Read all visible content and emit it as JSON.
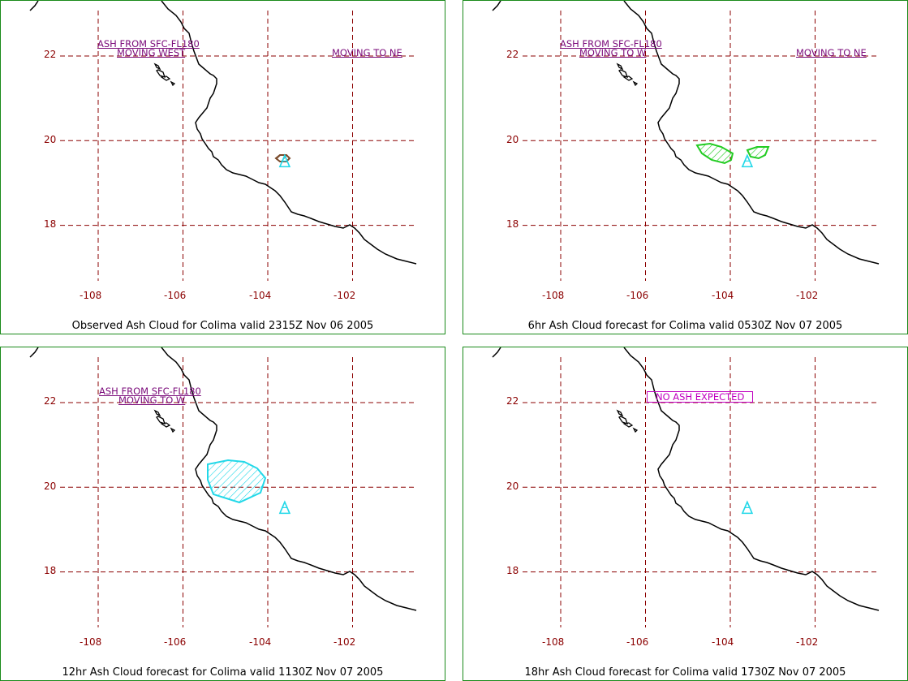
{
  "colors": {
    "grid": "#8b0000",
    "coast": "#000000",
    "observed_ash": "#7a4a2a",
    "forecast_ash_6hr": "#22cc22",
    "forecast_ash_12hr": "#22d8e8",
    "volcano": "#22d8e8",
    "annotation": "#7a0a7a",
    "no_ash_box": "#c000c0",
    "frame": "#1a8a1a"
  },
  "axes": {
    "lon_ticks": [
      "-108",
      "-106",
      "-104",
      "-102"
    ],
    "lat_ticks": [
      "22",
      "20",
      "18"
    ],
    "lon_values": [
      -108,
      -106,
      -104,
      -102
    ],
    "lat_values": [
      22,
      20,
      18
    ]
  },
  "volcano": {
    "name": "Colima",
    "lon": -103.6,
    "lat": 19.5,
    "icon": "volcano-triangle-icon"
  },
  "panels": [
    {
      "caption": "Observed Ash Cloud for Colima valid 2315Z Nov 06 2005",
      "annotations": [
        "ASH FROM SFC-FL180",
        "MOVING WEST",
        "MOVING TO NE"
      ],
      "ash_type": "observed"
    },
    {
      "caption": "6hr Ash Cloud forecast for Colima valid 0530Z Nov 07 2005",
      "annotations": [
        "ASH FROM SFC-FL180",
        "MOVING TO W",
        "MOVING TO NE"
      ],
      "ash_type": "forecast-6hr"
    },
    {
      "caption": "12hr Ash Cloud forecast for Colima valid 1130Z Nov 07 2005",
      "annotations": [
        "ASH FROM SFC-FL180",
        "MOVING TO W"
      ],
      "ash_type": "forecast-12hr"
    },
    {
      "caption": "18hr Ash Cloud forecast for Colima valid 1730Z Nov 07 2005",
      "annotations": [
        "NO ASH EXPECTED"
      ],
      "ash_type": "none"
    }
  ]
}
